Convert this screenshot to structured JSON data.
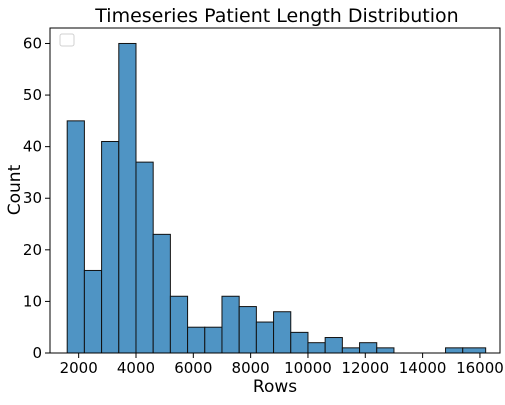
{
  "chart_data": {
    "type": "bar",
    "title": "Timeseries Patient Length Distribution",
    "xlabel": "Rows",
    "ylabel": "Count",
    "xlim": [
      1000,
      16700
    ],
    "ylim": [
      0,
      63
    ],
    "xticks": [
      2000,
      4000,
      6000,
      8000,
      10000,
      12000,
      14000,
      16000
    ],
    "yticks": [
      0,
      10,
      20,
      30,
      40,
      50,
      60
    ],
    "grid": false,
    "legend": {
      "placement": "top-left",
      "entries": []
    },
    "bin_edges": [
      1600,
      2200,
      2800,
      3400,
      4000,
      4600,
      5200,
      5800,
      6400,
      7000,
      7600,
      8200,
      8800,
      9400,
      10000,
      10600,
      11200,
      11800,
      12400,
      13000,
      13600,
      14200,
      14800,
      15400,
      16200
    ],
    "values": [
      45,
      16,
      41,
      60,
      37,
      23,
      11,
      5,
      5,
      11,
      9,
      6,
      8,
      4,
      2,
      3,
      1,
      2,
      1,
      0,
      0,
      0,
      1,
      1
    ],
    "colors": {
      "bar_fill": "#4f94c4",
      "bar_edge": "#111111",
      "axis": "#000000"
    }
  }
}
